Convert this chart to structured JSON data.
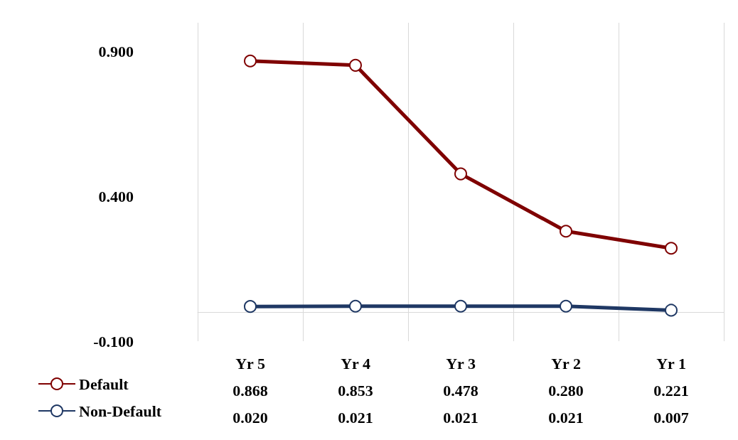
{
  "chart_data": {
    "type": "line",
    "categories": [
      "Yr 5",
      "Yr 4",
      "Yr 3",
      "Yr 2",
      "Yr 1"
    ],
    "series": [
      {
        "name": "Default",
        "color": "#7f0000",
        "values": [
          0.868,
          0.853,
          0.478,
          0.28,
          0.221
        ],
        "value_labels": [
          "0.868",
          "0.853",
          "0.478",
          "0.280",
          "0.221"
        ]
      },
      {
        "name": "Non-Default",
        "color": "#1f3864",
        "values": [
          0.02,
          0.021,
          0.021,
          0.021,
          0.007
        ],
        "value_labels": [
          "0.020",
          "0.021",
          "0.021",
          "0.021",
          "0.007"
        ]
      }
    ],
    "ylim": [
      -0.1,
      1.0
    ],
    "yticks": [
      {
        "value": -0.1,
        "label": "-0.100"
      },
      {
        "value": 0.4,
        "label": "0.400"
      },
      {
        "value": 0.9,
        "label": "0.900"
      }
    ],
    "grid": "x",
    "legend": "bottom left",
    "marker": "circle",
    "line_style": "solid"
  }
}
